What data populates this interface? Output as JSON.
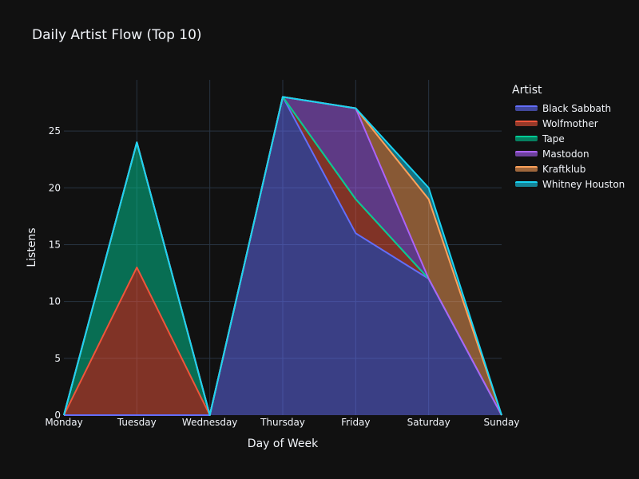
{
  "chart_data": {
    "type": "area",
    "title": "Daily Artist Flow (Top 10)",
    "xlabel": "Day of Week",
    "ylabel": "Listens",
    "categories": [
      "Monday",
      "Tuesday",
      "Wednesday",
      "Thursday",
      "Friday",
      "Saturday",
      "Sunday"
    ],
    "y_ticks": [
      0,
      5,
      10,
      15,
      20,
      25
    ],
    "ylim": [
      0,
      29.5
    ],
    "stacked": true,
    "grid": true,
    "legend_title": "Artist",
    "legend_position": "top-right",
    "series": [
      {
        "name": "Black Sabbath",
        "color": "#636efa",
        "values": [
          0,
          0,
          0,
          28,
          16,
          12,
          0
        ]
      },
      {
        "name": "Wolfmother",
        "color": "#ef553b",
        "values": [
          0,
          13,
          0,
          0,
          3,
          0,
          0
        ]
      },
      {
        "name": "Tape",
        "color": "#00cc96",
        "values": [
          0,
          11,
          0,
          0,
          0,
          0,
          0
        ]
      },
      {
        "name": "Mastodon",
        "color": "#ab63fa",
        "values": [
          0,
          0,
          0,
          0,
          8,
          0,
          0
        ]
      },
      {
        "name": "Kraftklub",
        "color": "#ffa15a",
        "values": [
          0,
          0,
          0,
          0,
          0,
          7,
          0
        ]
      },
      {
        "name": "Whitney Houston",
        "color": "#19d3f3",
        "values": [
          0,
          0,
          0,
          0,
          0,
          1,
          0
        ]
      }
    ]
  }
}
